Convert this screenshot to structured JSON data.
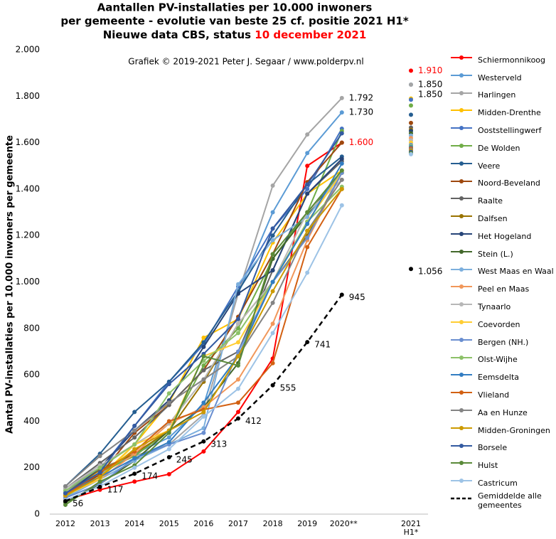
{
  "chart_data": {
    "type": "line",
    "title": [
      "Aantallen PV-installaties  per 10.000 inwoners",
      "per gemeente - evolutie  van beste 25 cf. positie  2021 H1*",
      "Nieuwe data CBS, status "
    ],
    "title_date": "10 december 2021",
    "annotation": "Grafiek  © 2019-2021 Peter J. Segaar / www.polderpv.nl",
    "y_label": "Aantal PV-installaties  per 10.000 inwoners  per gemeente",
    "categories": [
      "2012",
      "2013",
      "2014",
      "2015",
      "2016",
      "2017",
      "2018",
      "2019",
      "2020**",
      null,
      "2021 H1*"
    ],
    "ylim": [
      0,
      2000
    ],
    "yticks": [
      0,
      200,
      400,
      600,
      800,
      {
        "value": 1000,
        "label": "1.000"
      },
      {
        "value": 1200,
        "label": "1.200"
      },
      {
        "value": 1400,
        "label": "1.400"
      },
      {
        "value": 1600,
        "label": "1.600"
      },
      {
        "value": 1800,
        "label": "1.800"
      },
      {
        "value": 2000,
        "label": "2.000"
      }
    ],
    "series": [
      {
        "name": "Schiermonnikoog",
        "color": "#ff0000",
        "values": [
          60,
          105,
          140,
          172,
          270,
          440,
          670,
          1500,
          1600,
          null,
          1910
        ],
        "value_labels": [
          null,
          null,
          null,
          null,
          null,
          null,
          null,
          null,
          "1.600",
          null,
          "1.910"
        ],
        "value_label_color": "#ff0000"
      },
      {
        "name": "Westerveld",
        "color": "#5b9bd5",
        "values": [
          80,
          170,
          260,
          330,
          470,
          950,
          1300,
          1555,
          1730,
          null,
          1850
        ],
        "value_labels": [
          null,
          null,
          null,
          null,
          null,
          null,
          null,
          null,
          "1.730",
          null,
          "1.850"
        ]
      },
      {
        "name": "Harlingen",
        "color": "#a5a5a5",
        "values": [
          110,
          200,
          250,
          300,
          430,
          950,
          1415,
          1635,
          1792,
          null,
          1850
        ],
        "value_labels": [
          null,
          null,
          null,
          null,
          null,
          null,
          null,
          null,
          "1.792",
          null,
          "1.850"
        ]
      },
      {
        "name": "Midden-Drenthe",
        "color": "#ffc000",
        "values": [
          90,
          160,
          300,
          480,
          760,
          840,
          1170,
          1380,
          1480,
          null,
          1790
        ]
      },
      {
        "name": "Ooststellingwerf",
        "color": "#4472c4",
        "values": [
          100,
          190,
          380,
          570,
          730,
          980,
          1230,
          1400,
          1660,
          null,
          1785
        ]
      },
      {
        "name": "De Wolden",
        "color": "#70ad47",
        "values": [
          70,
          180,
          250,
          360,
          640,
          800,
          1100,
          1300,
          1650,
          null,
          1760
        ]
      },
      {
        "name": "Veere",
        "color": "#255e91",
        "values": [
          120,
          260,
          440,
          570,
          740,
          960,
          1200,
          1420,
          1540,
          null,
          1720
        ]
      },
      {
        "name": "Noord-Beveland",
        "color": "#9e480e",
        "values": [
          90,
          170,
          350,
          470,
          620,
          850,
          1120,
          1430,
          1600,
          null,
          1685
        ]
      },
      {
        "name": "Raalte",
        "color": "#636363",
        "values": [
          110,
          220,
          330,
          470,
          620,
          700,
          1050,
          1380,
          1520,
          null,
          1665
        ]
      },
      {
        "name": "Dalfsen",
        "color": "#997300",
        "values": [
          90,
          190,
          260,
          360,
          570,
          820,
          1000,
          1200,
          1470,
          null,
          1655
        ]
      },
      {
        "name": "Het Hogeland",
        "color": "#264478",
        "values": [
          80,
          200,
          360,
          490,
          720,
          950,
          1050,
          1380,
          1530,
          null,
          1650
        ]
      },
      {
        "name": "Stein (L.)",
        "color": "#43682b",
        "values": [
          50,
          130,
          230,
          360,
          460,
          650,
          1100,
          1290,
          1470,
          null,
          1640
        ]
      },
      {
        "name": "West Maas en Waal",
        "color": "#7cafdd",
        "values": [
          70,
          150,
          230,
          300,
          370,
          990,
          1180,
          1280,
          1470,
          null,
          1630
        ]
      },
      {
        "name": "Peel en Maas",
        "color": "#f1975a",
        "values": [
          90,
          150,
          260,
          390,
          460,
          580,
          820,
          1180,
          1470,
          null,
          1620
        ]
      },
      {
        "name": "Tynaarlo",
        "color": "#b7b7b7",
        "values": [
          110,
          210,
          300,
          390,
          580,
          820,
          1000,
          1300,
          1440,
          null,
          1610
        ]
      },
      {
        "name": "Coevorden",
        "color": "#ffcd33",
        "values": [
          80,
          150,
          300,
          360,
          680,
          740,
          1000,
          1260,
          1470,
          null,
          1600
        ]
      },
      {
        "name": "Bergen (NH.)",
        "color": "#698ed0",
        "values": [
          70,
          130,
          240,
          300,
          350,
          700,
          1000,
          1190,
          1470,
          null,
          1590
        ]
      },
      {
        "name": "Olst-Wijhe",
        "color": "#8cc168",
        "values": [
          100,
          200,
          300,
          520,
          660,
          780,
          1000,
          1260,
          1410,
          null,
          1585
        ]
      },
      {
        "name": "Eemsdelta",
        "color": "#327dc2",
        "values": [
          90,
          160,
          240,
          310,
          480,
          680,
          1000,
          1250,
          1510,
          null,
          1580
        ]
      },
      {
        "name": "Vlieland",
        "color": "#d26012",
        "values": [
          80,
          180,
          270,
          400,
          450,
          480,
          650,
          1150,
          1400,
          null,
          1575
        ]
      },
      {
        "name": "Aa en Hunze",
        "color": "#848484",
        "values": [
          120,
          250,
          360,
          480,
          580,
          680,
          910,
          1220,
          1440,
          null,
          1570
        ]
      },
      {
        "name": "Midden-Groningen",
        "color": "#cc9a00",
        "values": [
          80,
          160,
          280,
          360,
          440,
          680,
          960,
          1220,
          1400,
          null,
          1565
        ]
      },
      {
        "name": "Borsele",
        "color": "#335aa1",
        "values": [
          90,
          180,
          380,
          560,
          690,
          840,
          1230,
          1420,
          1640,
          null,
          1560
        ]
      },
      {
        "name": "Hulst",
        "color": "#5a8a39",
        "values": [
          40,
          140,
          210,
          350,
          680,
          640,
          1120,
          1300,
          1480,
          null,
          1555
        ]
      },
      {
        "name": "Castricum",
        "color": "#9dc3e6",
        "values": [
          60,
          120,
          200,
          280,
          420,
          540,
          780,
          1040,
          1330,
          null,
          1550
        ]
      },
      {
        "name": "Gemiddelde alle gemeentes",
        "color": "#000000",
        "dashed": true,
        "values": [
          56,
          117,
          174,
          245,
          313,
          412,
          555,
          741,
          945,
          null,
          1056
        ],
        "value_labels": [
          "56",
          "117",
          "174",
          "245",
          "313",
          "412",
          "555",
          "741",
          "945",
          null,
          "1.056"
        ]
      }
    ]
  }
}
